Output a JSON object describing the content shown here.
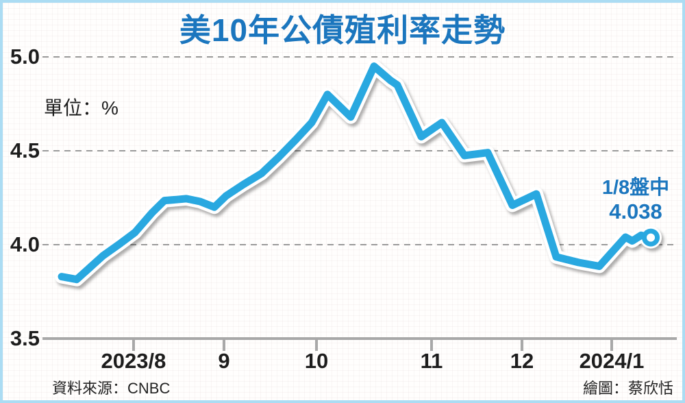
{
  "header": {
    "title": "美10年公債殖利率走勢"
  },
  "labels": {
    "unit": "單位：%",
    "source": "資料來源：CNBC",
    "credit": "繪圖：蔡欣恬"
  },
  "annotation": {
    "line1": "1/8盤中",
    "value": "4.038"
  },
  "colors": {
    "title_blue": "#1b76be",
    "line_blue": "#29a8e0",
    "frame_blue": "#abdcf3",
    "grid_gray": "#9a9a9a",
    "axis_gray": "#a8a8a8",
    "text_black": "#1d1d1d",
    "marker_fill": "#ffffff"
  },
  "chart_data": {
    "type": "line",
    "title": "美10年公債殖利率走勢",
    "unit": "%",
    "ylim": [
      3.5,
      5.0
    ],
    "grid": "horizontal-dashed",
    "legend": "none",
    "y_ticks": [
      {
        "label": "5.0",
        "value": 5.0
      },
      {
        "label": "4.5",
        "value": 4.5
      },
      {
        "label": "4.0",
        "value": 4.0
      },
      {
        "label": "3.5",
        "value": 3.5
      }
    ],
    "x_ticks": [
      {
        "label": "2023/8",
        "f": 0.1436
      },
      {
        "label": "9",
        "f": 0.2862
      },
      {
        "label": "10",
        "f": 0.432
      },
      {
        "label": "11",
        "f": 0.6134
      },
      {
        "label": "12",
        "f": 0.7559
      },
      {
        "label": "2024/1",
        "f": 0.8974
      }
    ],
    "series": [
      {
        "name": "US 10-year Treasury yield (%)",
        "points": [
          [
            0.0302,
            3.83
          ],
          [
            0.054,
            3.815
          ],
          [
            0.095,
            3.94
          ],
          [
            0.122,
            4.005
          ],
          [
            0.1458,
            4.065
          ],
          [
            0.1728,
            4.17
          ],
          [
            0.1922,
            4.235
          ],
          [
            0.2117,
            4.24
          ],
          [
            0.2268,
            4.245
          ],
          [
            0.2484,
            4.23
          ],
          [
            0.2711,
            4.2
          ],
          [
            0.2894,
            4.26
          ],
          [
            0.3164,
            4.32
          ],
          [
            0.3456,
            4.38
          ],
          [
            0.3737,
            4.47
          ],
          [
            0.3996,
            4.56
          ],
          [
            0.4244,
            4.65
          ],
          [
            0.4492,
            4.8
          ],
          [
            0.4676,
            4.74
          ],
          [
            0.486,
            4.68
          ],
          [
            0.5227,
            4.95
          ],
          [
            0.5486,
            4.875
          ],
          [
            0.5594,
            4.85
          ],
          [
            0.5972,
            4.575
          ],
          [
            0.6296,
            4.65
          ],
          [
            0.6652,
            4.475
          ],
          [
            0.7019,
            4.49
          ],
          [
            0.7408,
            4.21
          ],
          [
            0.7786,
            4.27
          ],
          [
            0.8099,
            3.935
          ],
          [
            0.8455,
            3.905
          ],
          [
            0.8779,
            3.885
          ],
          [
            0.919,
            4.04
          ],
          [
            0.9298,
            4.02
          ],
          [
            0.9438,
            4.05
          ],
          [
            0.959,
            4.038
          ]
        ]
      }
    ],
    "end_marker": {
      "f": 0.959,
      "value": 4.038,
      "date_label": "1/8盤中"
    }
  }
}
